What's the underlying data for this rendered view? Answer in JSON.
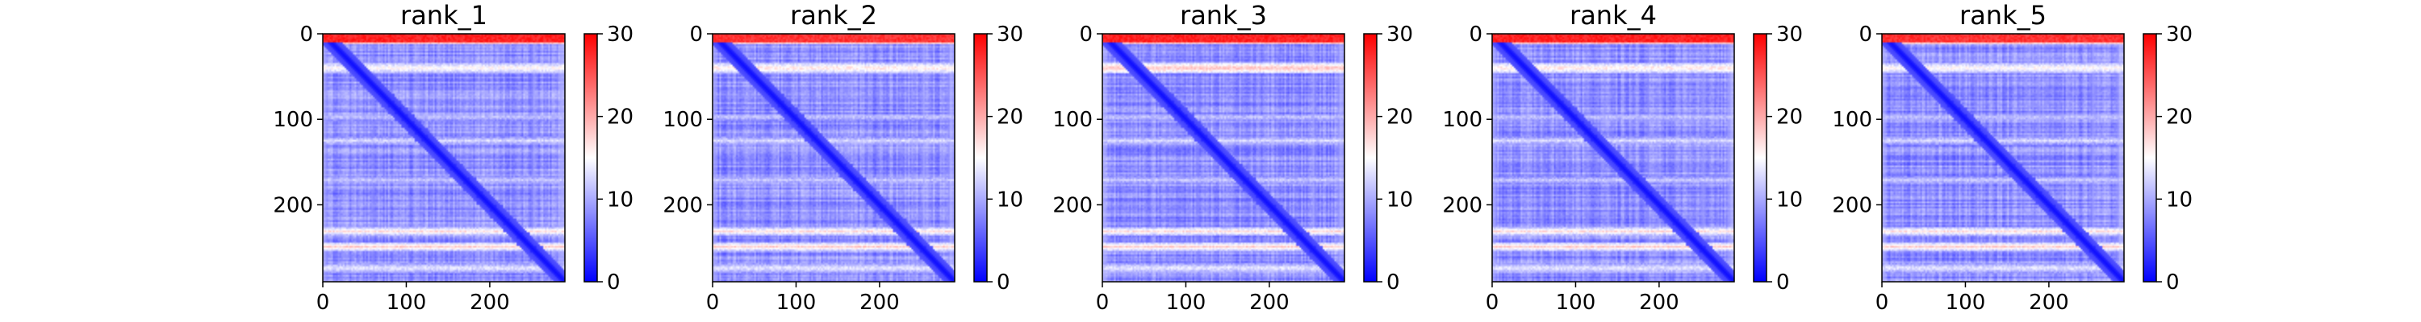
{
  "chart_data": [
    {
      "type": "heatmap",
      "title": "rank_1",
      "x_ticks": [
        0,
        100,
        200
      ],
      "y_ticks": [
        0,
        100,
        200
      ],
      "xlim": [
        0,
        290
      ],
      "ylim": [
        290,
        0
      ],
      "colorbar": {
        "ticks": [
          0,
          10,
          20,
          30
        ],
        "range": [
          0,
          30
        ],
        "colors": [
          "#0000ff",
          "#ffffff",
          "#ff0000"
        ]
      },
      "high_error_rows": [
        [
          0,
          10,
          28
        ],
        [
          35,
          45,
          16
        ],
        [
          95,
          100,
          12
        ],
        [
          122,
          128,
          13
        ],
        [
          168,
          174,
          12
        ],
        [
          228,
          234,
          17
        ],
        [
          246,
          252,
          18
        ],
        [
          270,
          278,
          14
        ]
      ],
      "high_error_cols": [
        [
          0,
          4,
          12
        ],
        [
          58,
          62,
          9
        ],
        [
          112,
          116,
          9
        ],
        [
          185,
          190,
          9
        ],
        [
          250,
          256,
          10
        ],
        [
          282,
          290,
          12
        ]
      ],
      "grid": false
    },
    {
      "type": "heatmap",
      "title": "rank_2",
      "x_ticks": [
        0,
        100,
        200
      ],
      "y_ticks": [
        0,
        100,
        200
      ],
      "xlim": [
        0,
        290
      ],
      "ylim": [
        290,
        0
      ],
      "colorbar": {
        "ticks": [
          0,
          10,
          20,
          30
        ],
        "range": [
          0,
          30
        ],
        "colors": [
          "#0000ff",
          "#ffffff",
          "#ff0000"
        ]
      },
      "high_error_rows": [
        [
          0,
          10,
          27
        ],
        [
          35,
          45,
          17
        ],
        [
          95,
          100,
          12
        ],
        [
          122,
          128,
          13
        ],
        [
          168,
          174,
          12
        ],
        [
          228,
          234,
          17
        ],
        [
          246,
          252,
          18
        ],
        [
          270,
          278,
          14
        ]
      ],
      "high_error_cols": [
        [
          0,
          4,
          12
        ],
        [
          58,
          62,
          9
        ],
        [
          112,
          116,
          9
        ],
        [
          185,
          190,
          9
        ],
        [
          250,
          256,
          10
        ],
        [
          282,
          290,
          12
        ]
      ],
      "grid": false
    },
    {
      "type": "heatmap",
      "title": "rank_3",
      "x_ticks": [
        0,
        100,
        200
      ],
      "y_ticks": [
        0,
        100,
        200
      ],
      "xlim": [
        0,
        290
      ],
      "ylim": [
        290,
        0
      ],
      "colorbar": {
        "ticks": [
          0,
          10,
          20,
          30
        ],
        "range": [
          0,
          30
        ],
        "colors": [
          "#0000ff",
          "#ffffff",
          "#ff0000"
        ]
      },
      "high_error_rows": [
        [
          0,
          10,
          28
        ],
        [
          35,
          45,
          19
        ],
        [
          95,
          100,
          12
        ],
        [
          122,
          128,
          13
        ],
        [
          168,
          174,
          12
        ],
        [
          228,
          234,
          17
        ],
        [
          246,
          252,
          18
        ],
        [
          270,
          278,
          14
        ]
      ],
      "high_error_cols": [
        [
          0,
          4,
          12
        ],
        [
          58,
          62,
          9
        ],
        [
          112,
          116,
          9
        ],
        [
          185,
          190,
          9
        ],
        [
          250,
          256,
          10
        ],
        [
          282,
          290,
          12
        ]
      ],
      "grid": false
    },
    {
      "type": "heatmap",
      "title": "rank_4",
      "x_ticks": [
        0,
        100,
        200
      ],
      "y_ticks": [
        0,
        100,
        200
      ],
      "xlim": [
        0,
        290
      ],
      "ylim": [
        290,
        0
      ],
      "colorbar": {
        "ticks": [
          0,
          10,
          20,
          30
        ],
        "range": [
          0,
          30
        ],
        "colors": [
          "#0000ff",
          "#ffffff",
          "#ff0000"
        ]
      },
      "high_error_rows": [
        [
          0,
          10,
          28
        ],
        [
          35,
          45,
          17
        ],
        [
          95,
          100,
          12
        ],
        [
          122,
          128,
          13
        ],
        [
          168,
          174,
          12
        ],
        [
          228,
          234,
          17
        ],
        [
          246,
          252,
          18
        ],
        [
          270,
          278,
          14
        ]
      ],
      "high_error_cols": [
        [
          0,
          4,
          12
        ],
        [
          58,
          62,
          9
        ],
        [
          112,
          116,
          9
        ],
        [
          185,
          190,
          9
        ],
        [
          250,
          256,
          10
        ],
        [
          282,
          290,
          12
        ]
      ],
      "grid": false
    },
    {
      "type": "heatmap",
      "title": "rank_5",
      "x_ticks": [
        0,
        100,
        200
      ],
      "y_ticks": [
        0,
        100,
        200
      ],
      "xlim": [
        0,
        290
      ],
      "ylim": [
        290,
        0
      ],
      "colorbar": {
        "ticks": [
          0,
          10,
          20,
          30
        ],
        "range": [
          0,
          30
        ],
        "colors": [
          "#0000ff",
          "#ffffff",
          "#ff0000"
        ]
      },
      "high_error_rows": [
        [
          0,
          10,
          27
        ],
        [
          35,
          45,
          16
        ],
        [
          95,
          100,
          12
        ],
        [
          122,
          128,
          13
        ],
        [
          168,
          174,
          12
        ],
        [
          228,
          234,
          17
        ],
        [
          246,
          252,
          18
        ],
        [
          270,
          278,
          14
        ]
      ],
      "high_error_cols": [
        [
          0,
          4,
          12
        ],
        [
          58,
          62,
          9
        ],
        [
          112,
          116,
          9
        ],
        [
          185,
          190,
          9
        ],
        [
          250,
          256,
          10
        ],
        [
          282,
          290,
          12
        ]
      ],
      "grid": false
    }
  ]
}
